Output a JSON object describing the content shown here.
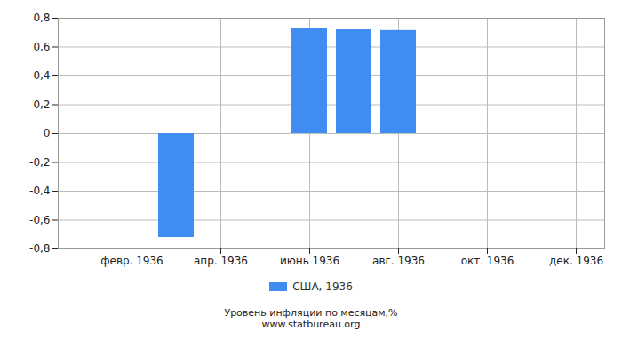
{
  "chart_data": {
    "type": "bar",
    "title": "Уровень инфляции по месяцам,%",
    "subtitle": "www.statbureau.org",
    "categories": [
      null,
      "февр. 1936",
      null,
      "апр. 1936",
      null,
      "июнь 1936",
      null,
      "авг. 1936",
      null,
      "окт. 1936",
      null,
      "дек. 1936"
    ],
    "series": [
      {
        "name": "США, 1936",
        "color": "#418cf0",
        "values": [
          0,
          0,
          -0.72,
          0,
          0,
          0.73,
          0.72,
          0.715,
          0,
          0,
          0,
          0
        ]
      }
    ],
    "ylim": [
      -0.8,
      0.8
    ],
    "yticks": [
      {
        "value": -0.8,
        "label": "-0,8"
      },
      {
        "value": -0.6,
        "label": "-0,6"
      },
      {
        "value": -0.4,
        "label": "-0,4"
      },
      {
        "value": -0.2,
        "label": "-0,2"
      },
      0,
      {
        "value": 0.2,
        "label": "0,2"
      },
      {
        "value": 0.4,
        "label": "0,4"
      },
      {
        "value": 0.6,
        "label": "0,6"
      },
      {
        "value": 0.8,
        "label": "0,8"
      }
    ],
    "grid": true,
    "legend": "bottom"
  }
}
